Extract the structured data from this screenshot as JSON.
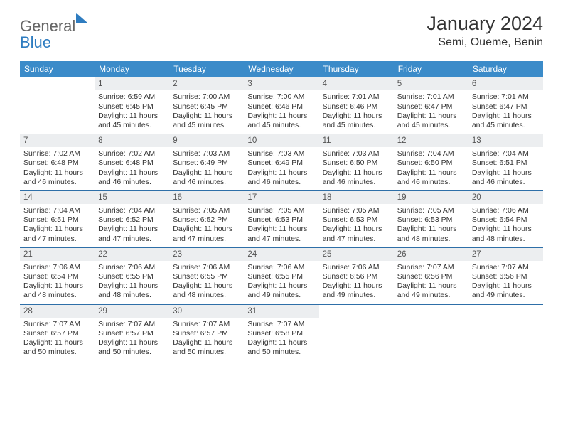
{
  "logo": {
    "part1": "General",
    "part2": "Blue"
  },
  "header": {
    "month_title": "January 2024",
    "location": "Semi, Oueme, Benin"
  },
  "colors": {
    "header_bg": "#3b8bc9",
    "header_text": "#ffffff",
    "daynum_bg": "#eceef0",
    "row_border": "#2e6fa8",
    "logo_blue": "#2e7cc0",
    "text": "#333333"
  },
  "weekdays": [
    "Sunday",
    "Monday",
    "Tuesday",
    "Wednesday",
    "Thursday",
    "Friday",
    "Saturday"
  ],
  "calendar": {
    "first_weekday_index": 1,
    "days": [
      {
        "n": 1,
        "sunrise": "6:59 AM",
        "sunset": "6:45 PM",
        "daylight": "11 hours and 45 minutes."
      },
      {
        "n": 2,
        "sunrise": "7:00 AM",
        "sunset": "6:45 PM",
        "daylight": "11 hours and 45 minutes."
      },
      {
        "n": 3,
        "sunrise": "7:00 AM",
        "sunset": "6:46 PM",
        "daylight": "11 hours and 45 minutes."
      },
      {
        "n": 4,
        "sunrise": "7:01 AM",
        "sunset": "6:46 PM",
        "daylight": "11 hours and 45 minutes."
      },
      {
        "n": 5,
        "sunrise": "7:01 AM",
        "sunset": "6:47 PM",
        "daylight": "11 hours and 45 minutes."
      },
      {
        "n": 6,
        "sunrise": "7:01 AM",
        "sunset": "6:47 PM",
        "daylight": "11 hours and 45 minutes."
      },
      {
        "n": 7,
        "sunrise": "7:02 AM",
        "sunset": "6:48 PM",
        "daylight": "11 hours and 46 minutes."
      },
      {
        "n": 8,
        "sunrise": "7:02 AM",
        "sunset": "6:48 PM",
        "daylight": "11 hours and 46 minutes."
      },
      {
        "n": 9,
        "sunrise": "7:03 AM",
        "sunset": "6:49 PM",
        "daylight": "11 hours and 46 minutes."
      },
      {
        "n": 10,
        "sunrise": "7:03 AM",
        "sunset": "6:49 PM",
        "daylight": "11 hours and 46 minutes."
      },
      {
        "n": 11,
        "sunrise": "7:03 AM",
        "sunset": "6:50 PM",
        "daylight": "11 hours and 46 minutes."
      },
      {
        "n": 12,
        "sunrise": "7:04 AM",
        "sunset": "6:50 PM",
        "daylight": "11 hours and 46 minutes."
      },
      {
        "n": 13,
        "sunrise": "7:04 AM",
        "sunset": "6:51 PM",
        "daylight": "11 hours and 46 minutes."
      },
      {
        "n": 14,
        "sunrise": "7:04 AM",
        "sunset": "6:51 PM",
        "daylight": "11 hours and 47 minutes."
      },
      {
        "n": 15,
        "sunrise": "7:04 AM",
        "sunset": "6:52 PM",
        "daylight": "11 hours and 47 minutes."
      },
      {
        "n": 16,
        "sunrise": "7:05 AM",
        "sunset": "6:52 PM",
        "daylight": "11 hours and 47 minutes."
      },
      {
        "n": 17,
        "sunrise": "7:05 AM",
        "sunset": "6:53 PM",
        "daylight": "11 hours and 47 minutes."
      },
      {
        "n": 18,
        "sunrise": "7:05 AM",
        "sunset": "6:53 PM",
        "daylight": "11 hours and 47 minutes."
      },
      {
        "n": 19,
        "sunrise": "7:05 AM",
        "sunset": "6:53 PM",
        "daylight": "11 hours and 48 minutes."
      },
      {
        "n": 20,
        "sunrise": "7:06 AM",
        "sunset": "6:54 PM",
        "daylight": "11 hours and 48 minutes."
      },
      {
        "n": 21,
        "sunrise": "7:06 AM",
        "sunset": "6:54 PM",
        "daylight": "11 hours and 48 minutes."
      },
      {
        "n": 22,
        "sunrise": "7:06 AM",
        "sunset": "6:55 PM",
        "daylight": "11 hours and 48 minutes."
      },
      {
        "n": 23,
        "sunrise": "7:06 AM",
        "sunset": "6:55 PM",
        "daylight": "11 hours and 48 minutes."
      },
      {
        "n": 24,
        "sunrise": "7:06 AM",
        "sunset": "6:55 PM",
        "daylight": "11 hours and 49 minutes."
      },
      {
        "n": 25,
        "sunrise": "7:06 AM",
        "sunset": "6:56 PM",
        "daylight": "11 hours and 49 minutes."
      },
      {
        "n": 26,
        "sunrise": "7:07 AM",
        "sunset": "6:56 PM",
        "daylight": "11 hours and 49 minutes."
      },
      {
        "n": 27,
        "sunrise": "7:07 AM",
        "sunset": "6:56 PM",
        "daylight": "11 hours and 49 minutes."
      },
      {
        "n": 28,
        "sunrise": "7:07 AM",
        "sunset": "6:57 PM",
        "daylight": "11 hours and 50 minutes."
      },
      {
        "n": 29,
        "sunrise": "7:07 AM",
        "sunset": "6:57 PM",
        "daylight": "11 hours and 50 minutes."
      },
      {
        "n": 30,
        "sunrise": "7:07 AM",
        "sunset": "6:57 PM",
        "daylight": "11 hours and 50 minutes."
      },
      {
        "n": 31,
        "sunrise": "7:07 AM",
        "sunset": "6:58 PM",
        "daylight": "11 hours and 50 minutes."
      }
    ]
  },
  "labels": {
    "sunrise_prefix": "Sunrise: ",
    "sunset_prefix": "Sunset: ",
    "daylight_prefix": "Daylight: "
  }
}
